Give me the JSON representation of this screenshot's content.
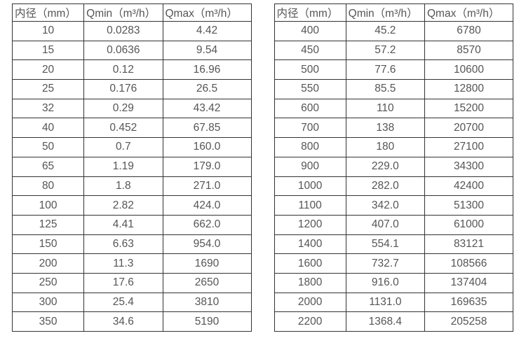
{
  "colors": {
    "border": "#333333",
    "text": "#555555",
    "background": "#ffffff"
  },
  "tables": [
    {
      "name": "flow-spec-small-diameters",
      "headers": [
        "内径（mm）",
        "Qmin（m³/h）",
        "Qmax（m³/h）"
      ],
      "rows": [
        [
          "10",
          "0.0283",
          "4.42"
        ],
        [
          "15",
          "0.0636",
          "9.54"
        ],
        [
          "20",
          "0.12",
          "16.96"
        ],
        [
          "25",
          "0.176",
          "26.5"
        ],
        [
          "32",
          "0.29",
          "43.42"
        ],
        [
          "40",
          "0.452",
          "67.85"
        ],
        [
          "50",
          "0.7",
          "160.0"
        ],
        [
          "65",
          "1.19",
          "179.0"
        ],
        [
          "80",
          "1.8",
          "271.0"
        ],
        [
          "100",
          "2.82",
          "424.0"
        ],
        [
          "125",
          "4.41",
          "662.0"
        ],
        [
          "150",
          "6.63",
          "954.0"
        ],
        [
          "200",
          "11.3",
          "1690"
        ],
        [
          "250",
          "17.6",
          "2650"
        ],
        [
          "300",
          "25.4",
          "3810"
        ],
        [
          "350",
          "34.6",
          "5190"
        ]
      ]
    },
    {
      "name": "flow-spec-large-diameters",
      "headers": [
        "内径（mm）",
        "Qmin（m³/h）",
        "Qmax（m³/h）"
      ],
      "rows": [
        [
          "400",
          "45.2",
          "6780"
        ],
        [
          "450",
          "57.2",
          "8570"
        ],
        [
          "500",
          "77.6",
          "10600"
        ],
        [
          "550",
          "85.5",
          "12800"
        ],
        [
          "600",
          "110",
          "15200"
        ],
        [
          "700",
          "138",
          "20700"
        ],
        [
          "800",
          "180",
          "27100"
        ],
        [
          "900",
          "229.0",
          "34300"
        ],
        [
          "1000",
          "282.0",
          "42400"
        ],
        [
          "1100",
          "342.0",
          "51300"
        ],
        [
          "1200",
          "407.0",
          "61000"
        ],
        [
          "1400",
          "554.1",
          "83121"
        ],
        [
          "1600",
          "732.7",
          "108566"
        ],
        [
          "1800",
          "916.0",
          "137404"
        ],
        [
          "2000",
          "1131.0",
          "169635"
        ],
        [
          "2200",
          "1368.4",
          "205258"
        ]
      ]
    }
  ]
}
